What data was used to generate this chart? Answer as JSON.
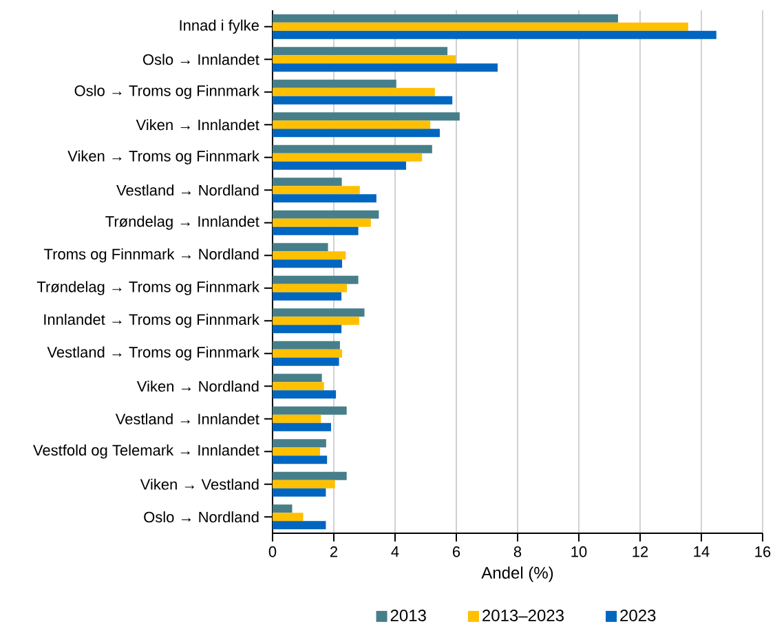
{
  "chart_data": {
    "type": "bar",
    "orientation": "horizontal",
    "xlabel": "Andel (%)",
    "categories": [
      "Innad i fylke",
      "Oslo → Innlandet",
      "Oslo → Troms og Finnmark",
      "Viken → Innlandet",
      "Viken → Troms og Finnmark",
      "Vestland → Nordland",
      "Trøndelag → Innlandet",
      "Troms og Finnmark → Nordland",
      "Trøndelag → Troms og Finnmark",
      "Innlandet → Troms og Finnmark",
      "Vestland → Troms og Finnmark",
      "Viken → Nordland",
      "Vestland → Innlandet",
      "Vestfold og Telemark → Innlandet",
      "Viken → Vestland",
      "Oslo → Nordland"
    ],
    "series": [
      {
        "name": "2013",
        "color": "#467f8a",
        "values": [
          11.28,
          5.71,
          4.04,
          6.11,
          5.21,
          2.26,
          3.47,
          1.81,
          2.8,
          3.0,
          2.2,
          1.61,
          2.42,
          1.75,
          2.42,
          0.64
        ]
      },
      {
        "name": "2013–2023",
        "color": "#ffc000",
        "values": [
          13.57,
          5.98,
          5.3,
          5.15,
          4.88,
          2.85,
          3.21,
          2.39,
          2.43,
          2.83,
          2.27,
          1.68,
          1.58,
          1.55,
          2.04,
          1.0
        ]
      },
      {
        "name": "2023",
        "color": "#0066bf",
        "values": [
          14.49,
          7.35,
          5.87,
          5.46,
          4.36,
          3.39,
          2.8,
          2.27,
          2.25,
          2.25,
          2.17,
          2.07,
          1.91,
          1.78,
          1.74,
          1.74
        ]
      }
    ],
    "xlim": [
      0,
      16
    ],
    "xticks": [
      0,
      2,
      4,
      6,
      8,
      10,
      12,
      14,
      16
    ],
    "grid": "x",
    "legend": "bottom"
  }
}
